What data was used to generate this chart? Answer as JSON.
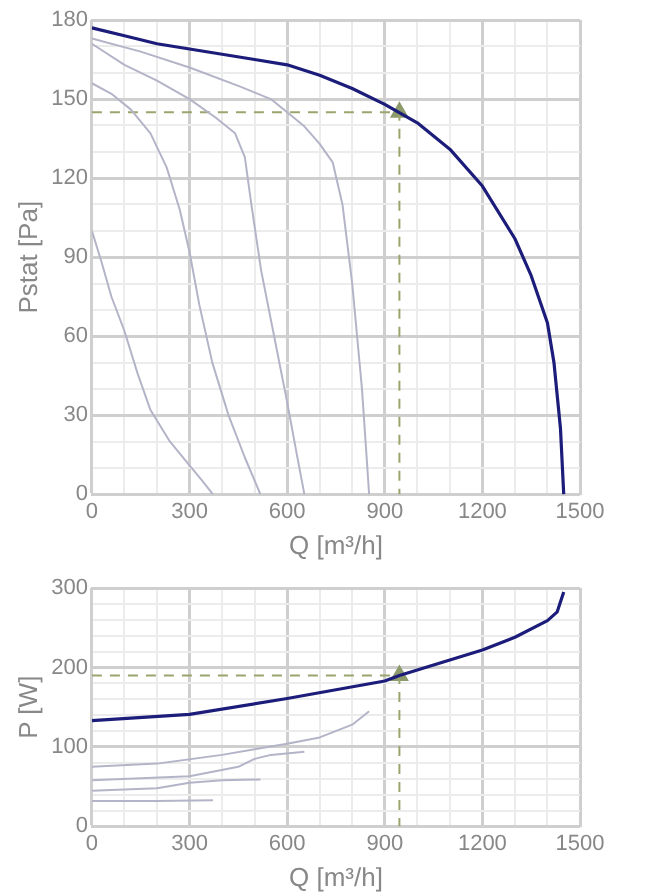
{
  "chart_data": [
    {
      "type": "line",
      "xlabel": "Q [m³/h]",
      "ylabel": "Pstat [Pa]",
      "xlim": [
        0,
        1500
      ],
      "ylim": [
        0,
        180
      ],
      "xticks": [
        0,
        {
          "value": 100,
          "label": null
        },
        {
          "value": 200,
          "label": null
        },
        300,
        {
          "value": 400,
          "label": null
        },
        {
          "value": 500,
          "label": null
        },
        600,
        {
          "value": 700,
          "label": null
        },
        {
          "value": 800,
          "label": null
        },
        900,
        {
          "value": 1000,
          "label": null
        },
        {
          "value": 1100,
          "label": null
        },
        1200,
        {
          "value": 1300,
          "label": null
        },
        {
          "value": 1400,
          "label": null
        },
        1500
      ],
      "yticks": [
        0,
        {
          "value": 10,
          "label": null
        },
        {
          "value": 20,
          "label": null
        },
        30,
        {
          "value": 40,
          "label": null
        },
        {
          "value": 50,
          "label": null
        },
        60,
        {
          "value": 70,
          "label": null
        },
        {
          "value": 80,
          "label": null
        },
        90,
        {
          "value": 100,
          "label": null
        },
        {
          "value": 110,
          "label": null
        },
        120,
        {
          "value": 130,
          "label": null
        },
        {
          "value": 140,
          "label": null
        },
        150,
        {
          "value": 160,
          "label": null
        },
        {
          "value": 170,
          "label": null
        },
        180
      ],
      "grid": true,
      "legend": false,
      "marker": "none",
      "line_style": "solid",
      "series": [
        {
          "color": "#b4b4c8",
          "x": [
            0,
            30,
            60,
            100,
            140,
            180,
            240,
            300,
            340,
            372
          ],
          "values": [
            100,
            88,
            75,
            62,
            46,
            32,
            20,
            11,
            5,
            0
          ]
        },
        {
          "color": "#b4b4c8",
          "x": [
            0,
            60,
            120,
            180,
            230,
            270,
            300,
            330,
            370,
            420,
            470,
            518
          ],
          "values": [
            156,
            152,
            146,
            137,
            124,
            108,
            92,
            72,
            50,
            30,
            14,
            0
          ]
        },
        {
          "color": "#b4b4c8",
          "x": [
            0,
            100,
            200,
            300,
            380,
            440,
            470,
            490,
            520,
            560,
            600,
            630,
            653
          ],
          "values": [
            171,
            163,
            157,
            150,
            143,
            137,
            128,
            110,
            85,
            60,
            35,
            15,
            0
          ]
        },
        {
          "color": "#b4b4c8",
          "x": [
            0,
            150,
            300,
            450,
            550,
            650,
            700,
            740,
            770,
            800,
            830,
            852
          ],
          "values": [
            173,
            168,
            162,
            155,
            150,
            140,
            133,
            126,
            110,
            80,
            40,
            0
          ]
        },
        {
          "color": "#1c1c7a",
          "x": [
            0,
            100,
            200,
            300,
            400,
            500,
            600,
            700,
            800,
            900,
            1000,
            1100,
            1200,
            1300,
            1350,
            1400,
            1420,
            1440,
            1450
          ],
          "values": [
            177,
            174,
            171,
            169,
            167,
            165,
            163,
            159,
            154,
            148,
            141,
            131,
            117,
            97,
            83,
            65,
            50,
            25,
            0
          ]
        },
        {
          "color": "#9aa56e",
          "line_style": "dashed",
          "x": [
            0,
            945,
            945
          ],
          "values": [
            145,
            145,
            0
          ]
        },
        {
          "type": "scatter",
          "color": "#8c9a6c",
          "marker": "triangle",
          "x": [
            945
          ],
          "values": [
            145
          ]
        }
      ]
    },
    {
      "type": "line",
      "xlabel": "Q [m³/h]",
      "ylabel": "P [W]",
      "xlim": [
        0,
        1500
      ],
      "ylim": [
        0,
        300
      ],
      "xticks": [
        0,
        {
          "value": 100,
          "label": null
        },
        {
          "value": 200,
          "label": null
        },
        300,
        {
          "value": 400,
          "label": null
        },
        {
          "value": 500,
          "label": null
        },
        600,
        {
          "value": 700,
          "label": null
        },
        {
          "value": 800,
          "label": null
        },
        900,
        {
          "value": 1000,
          "label": null
        },
        {
          "value": 1100,
          "label": null
        },
        1200,
        {
          "value": 1300,
          "label": null
        },
        {
          "value": 1400,
          "label": null
        },
        1500
      ],
      "yticks": [
        0,
        {
          "value": 20,
          "label": null
        },
        {
          "value": 40,
          "label": null
        },
        {
          "value": 60,
          "label": null
        },
        {
          "value": 80,
          "label": null
        },
        100,
        {
          "value": 120,
          "label": null
        },
        {
          "value": 140,
          "label": null
        },
        {
          "value": 160,
          "label": null
        },
        {
          "value": 180,
          "label": null
        },
        200,
        {
          "value": 220,
          "label": null
        },
        {
          "value": 240,
          "label": null
        },
        {
          "value": 260,
          "label": null
        },
        {
          "value": 280,
          "label": null
        },
        300
      ],
      "grid": true,
      "legend": false,
      "marker": "none",
      "line_style": "solid",
      "series": [
        {
          "color": "#b4b4c8",
          "x": [
            0,
            200,
            372
          ],
          "values": [
            32,
            32,
            33
          ]
        },
        {
          "color": "#b4b4c8",
          "x": [
            0,
            200,
            300,
            400,
            518
          ],
          "values": [
            45,
            48,
            55,
            58,
            59
          ]
        },
        {
          "color": "#b4b4c8",
          "x": [
            0,
            300,
            450,
            500,
            550,
            653
          ],
          "values": [
            58,
            63,
            75,
            85,
            90,
            94
          ]
        },
        {
          "color": "#b4b4c8",
          "x": [
            0,
            200,
            400,
            500,
            600,
            700,
            800,
            852
          ],
          "values": [
            75,
            79,
            90,
            97,
            104,
            112,
            128,
            145
          ]
        },
        {
          "color": "#1c1c7a",
          "x": [
            0,
            300,
            600,
            900,
            945,
            1200,
            1300,
            1400,
            1430,
            1450
          ],
          "values": [
            133,
            141,
            161,
            183,
            190,
            222,
            238,
            259,
            270,
            295
          ]
        },
        {
          "color": "#9aa56e",
          "line_style": "dashed",
          "x": [
            0,
            945,
            945
          ],
          "values": [
            190,
            190,
            0
          ]
        },
        {
          "type": "scatter",
          "color": "#8c9a6c",
          "marker": "triangle",
          "x": [
            945
          ],
          "values": [
            190
          ]
        }
      ]
    }
  ]
}
